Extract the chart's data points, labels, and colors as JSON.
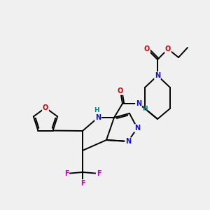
{
  "bg_color": "#f0f0f0",
  "bond_color": "#000000",
  "atom_colors": {
    "N": "#1010cc",
    "O": "#cc0000",
    "F": "#cc00cc",
    "H": "#008888",
    "C": "#000000"
  },
  "figsize": [
    3.0,
    3.0
  ],
  "dpi": 100,
  "lw": 1.4,
  "fs": 7.0
}
